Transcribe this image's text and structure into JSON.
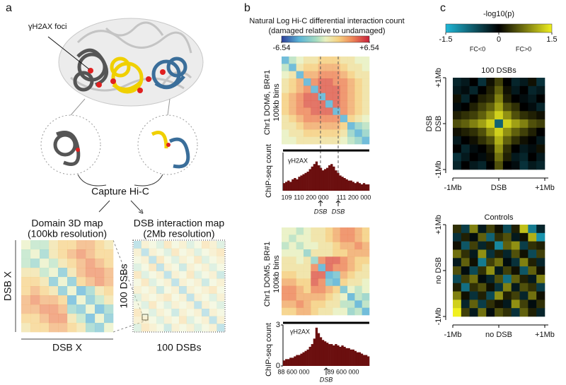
{
  "panel_a": {
    "label": "a",
    "foci_label": "γH2AX foci",
    "capture": "Capture Hi-C",
    "domain_map": {
      "title": "Domain 3D map",
      "subtitle": "(100kb resolution)",
      "x_label": "DSB X",
      "y_label": "DSB X",
      "matrix": [
        [
          0,
          -1,
          -1,
          1,
          2,
          2,
          3,
          3,
          2,
          1
        ],
        [
          -1,
          0,
          -2,
          1,
          2,
          3,
          4,
          3,
          2,
          2
        ],
        [
          -1,
          -2,
          0,
          -1,
          1,
          2,
          3,
          4,
          3,
          2
        ],
        [
          1,
          1,
          -1,
          0,
          -3,
          1,
          3,
          4,
          4,
          3
        ],
        [
          2,
          2,
          1,
          -3,
          0,
          -3,
          2,
          3,
          4,
          3
        ],
        [
          2,
          3,
          2,
          1,
          -3,
          0,
          -4,
          -2,
          1,
          2
        ],
        [
          3,
          4,
          3,
          3,
          2,
          -4,
          0,
          -3,
          -1,
          1
        ],
        [
          3,
          3,
          4,
          4,
          3,
          -2,
          -3,
          0,
          -4,
          -2
        ],
        [
          2,
          2,
          3,
          4,
          4,
          1,
          -1,
          -4,
          0,
          -3
        ],
        [
          1,
          2,
          2,
          3,
          3,
          2,
          1,
          -2,
          -3,
          0
        ]
      ]
    },
    "dsb_map": {
      "title": "DSB interaction map",
      "subtitle": "(2Mb resolution)",
      "x_label": "100 DSBs",
      "y_label": "100 DSBs",
      "matrix": [
        [
          -3,
          1,
          0,
          -1,
          2,
          0,
          1,
          -1,
          0,
          2,
          1,
          -1
        ],
        [
          1,
          -3,
          1,
          0,
          -1,
          2,
          0,
          1,
          -1,
          0,
          1,
          2
        ],
        [
          0,
          1,
          -3,
          2,
          0,
          -1,
          1,
          0,
          2,
          -1,
          0,
          1
        ],
        [
          -1,
          0,
          2,
          -3,
          1,
          0,
          -2,
          1,
          0,
          1,
          -1,
          0
        ],
        [
          2,
          -1,
          0,
          1,
          -3,
          1,
          0,
          2,
          -1,
          0,
          1,
          -2
        ],
        [
          0,
          2,
          -1,
          0,
          1,
          -3,
          1,
          0,
          1,
          -2,
          0,
          1
        ],
        [
          1,
          0,
          1,
          -2,
          0,
          1,
          -3,
          1,
          0,
          1,
          2,
          0
        ],
        [
          -1,
          1,
          0,
          1,
          2,
          0,
          1,
          -3,
          1,
          0,
          -1,
          1
        ],
        [
          0,
          -1,
          2,
          0,
          -1,
          1,
          0,
          1,
          -3,
          1,
          0,
          -1
        ],
        [
          2,
          0,
          -1,
          1,
          0,
          -2,
          1,
          0,
          1,
          -3,
          1,
          0
        ],
        [
          1,
          1,
          0,
          -1,
          1,
          0,
          2,
          -1,
          0,
          1,
          -3,
          1
        ],
        [
          -1,
          2,
          1,
          0,
          -2,
          1,
          0,
          1,
          -1,
          0,
          1,
          -3
        ]
      ]
    }
  },
  "panel_b": {
    "label": "b",
    "colorbar": {
      "title": "Natural Log Hi-C differential interaction count",
      "subtitle": "(damaged relative to undamaged)",
      "lim": [
        -6.54,
        6.54
      ],
      "ticks": [
        -6.54,
        {
          "value": 6.54,
          "label": "+6.54"
        }
      ]
    },
    "maps": [
      {
        "y_label": "Chr1 DOM6, BR#1",
        "y_sublabel": "100kb bins",
        "matrix": [
          [
            -4,
            -1,
            0,
            1,
            1,
            2,
            2,
            2,
            1,
            1,
            0,
            0
          ],
          [
            -1,
            -4,
            1,
            2,
            2,
            3,
            3,
            3,
            2,
            1,
            1,
            0
          ],
          [
            0,
            1,
            -4,
            3,
            3,
            4,
            4,
            4,
            3,
            2,
            1,
            1
          ],
          [
            1,
            2,
            3,
            -4,
            4,
            5,
            5,
            4,
            4,
            3,
            2,
            1
          ],
          [
            1,
            2,
            3,
            4,
            -4,
            5,
            5,
            5,
            4,
            3,
            2,
            1
          ],
          [
            2,
            3,
            4,
            5,
            5,
            -4,
            5,
            5,
            4,
            3,
            2,
            1
          ],
          [
            2,
            3,
            4,
            5,
            5,
            5,
            -4,
            5,
            4,
            3,
            2,
            1
          ],
          [
            2,
            3,
            4,
            4,
            5,
            5,
            5,
            -4,
            4,
            3,
            2,
            1
          ],
          [
            1,
            2,
            3,
            4,
            4,
            4,
            4,
            4,
            -4,
            2,
            1,
            0
          ],
          [
            1,
            1,
            2,
            3,
            3,
            3,
            3,
            3,
            2,
            -4,
            -2,
            -1
          ],
          [
            0,
            1,
            1,
            2,
            2,
            2,
            2,
            2,
            1,
            -2,
            -4,
            -2
          ],
          [
            0,
            0,
            1,
            1,
            1,
            1,
            1,
            1,
            0,
            -1,
            -2,
            -4
          ]
        ],
        "track": {
          "y_label": "ChIP-seq count",
          "name": "γH2AX",
          "ylim": [
            0,
            3
          ],
          "xticks": [
            "109",
            "110 200 000",
            "111 200 000"
          ],
          "annotations": [
            "DSB",
            "DSB"
          ],
          "values": [
            0.6,
            0.7,
            0.8,
            0.7,
            0.9,
            1.0,
            0.9,
            1.1,
            1.2,
            1.3,
            1.4,
            1.5,
            1.7,
            1.9,
            2.1,
            2.3,
            2.0,
            1.8,
            1.6,
            1.7,
            1.8,
            2.0,
            2.1,
            1.9,
            1.6,
            1.4,
            1.2,
            1.1,
            1.0,
            0.9,
            0.8,
            0.8,
            0.7,
            0.6,
            0.7,
            0.6,
            0.5,
            0.6,
            0.5,
            0.5
          ]
        }
      },
      {
        "y_label": "Chr1 DOM5, BR#1",
        "y_sublabel": "100kb bins",
        "matrix": [
          [
            0,
            0,
            -1,
            0,
            1,
            1,
            2,
            3,
            4,
            4,
            3,
            2
          ],
          [
            0,
            -1,
            0,
            0,
            1,
            1,
            2,
            3,
            4,
            4,
            3,
            2
          ],
          [
            -1,
            0,
            -1,
            0,
            0,
            1,
            1,
            2,
            3,
            3,
            4,
            3
          ],
          [
            0,
            0,
            0,
            -2,
            1,
            1,
            1,
            2,
            2,
            3,
            3,
            3
          ],
          [
            1,
            1,
            0,
            1,
            -2,
            4,
            5,
            5,
            4,
            3,
            2,
            2
          ],
          [
            1,
            1,
            1,
            1,
            4,
            -4,
            5,
            4,
            4,
            3,
            2,
            1
          ],
          [
            2,
            2,
            1,
            1,
            5,
            5,
            -4,
            -3,
            3,
            2,
            1,
            1
          ],
          [
            3,
            3,
            2,
            2,
            5,
            4,
            -3,
            -4,
            2,
            1,
            1,
            0
          ],
          [
            4,
            4,
            3,
            2,
            4,
            4,
            3,
            2,
            -3,
            0,
            -1,
            0
          ],
          [
            4,
            4,
            3,
            3,
            3,
            3,
            2,
            1,
            0,
            -4,
            -1,
            -2
          ],
          [
            3,
            3,
            4,
            3,
            2,
            2,
            1,
            1,
            -1,
            -1,
            -4,
            -1
          ],
          [
            2,
            2,
            3,
            3,
            2,
            1,
            1,
            0,
            0,
            -2,
            -1,
            -4
          ]
        ],
        "track": {
          "y_label": "ChIP-seq count",
          "name": "γH2AX",
          "ylim": [
            0,
            3
          ],
          "yticks": [
            0,
            3
          ],
          "xticks": [
            "88 600 000",
            "89 600 000"
          ],
          "annotations": [
            "DSB"
          ],
          "values": [
            0.4,
            0.5,
            0.5,
            0.6,
            0.6,
            0.7,
            0.8,
            0.8,
            0.9,
            1.0,
            1.1,
            1.2,
            1.4,
            1.6,
            2.0,
            2.8,
            2.4,
            2.1,
            1.9,
            1.8,
            1.7,
            1.6,
            1.6,
            1.5,
            1.6,
            1.5,
            1.4,
            1.5,
            1.4,
            1.3,
            1.3,
            1.2,
            1.2,
            1.1,
            1.0,
            1.0,
            0.9,
            0.8,
            0.8,
            0.7
          ]
        }
      }
    ]
  },
  "panel_c": {
    "label": "c",
    "colorbar": {
      "title": "-log10(p)",
      "lim": [
        -1.5,
        1.5
      ],
      "ticks": [
        -1.5,
        0,
        1.5
      ],
      "neg_label": "FC<0",
      "pos_label": "FC>0"
    },
    "maps": [
      {
        "title": "100 DSBs",
        "y_ticks": [
          "+1Mb",
          "DSB",
          "-1Mb"
        ],
        "y_label": "DSB",
        "x_ticks": [
          "-1Mb",
          "DSB",
          "+1Mb"
        ],
        "matrix": [
          [
            -0.3,
            -0.2,
            0,
            -0.4,
            0.1,
            0.4,
            0,
            -0.3,
            -0.2,
            0.1,
            -0.4
          ],
          [
            -0.2,
            -0.1,
            -0.3,
            0,
            0.2,
            0.6,
            0.1,
            -0.2,
            0,
            -0.3,
            -0.2
          ],
          [
            0.1,
            -0.3,
            0,
            0.2,
            0.3,
            0.8,
            0.2,
            0,
            -0.1,
            -0.2,
            0
          ],
          [
            -0.1,
            0,
            0.2,
            0.4,
            0.6,
            1.0,
            0.5,
            0.3,
            0,
            -0.1,
            -0.3
          ],
          [
            0.2,
            0.3,
            0.4,
            0.6,
            0.9,
            1.3,
            0.9,
            0.5,
            0.3,
            0.2,
            0.1
          ],
          [
            0.5,
            0.6,
            0.8,
            1.0,
            1.3,
            -0.8,
            1.3,
            1.0,
            0.8,
            0.5,
            0.4
          ],
          [
            0.1,
            0.2,
            0.3,
            0.5,
            0.9,
            1.3,
            0.9,
            0.6,
            0.4,
            0.2,
            0
          ],
          [
            -0.2,
            0,
            0.1,
            0.3,
            0.5,
            1.1,
            0.6,
            0.3,
            0.1,
            0,
            -0.2
          ],
          [
            0,
            -0.3,
            -0.1,
            0,
            0.2,
            0.9,
            0.3,
            0,
            -0.2,
            -0.1,
            0.1
          ],
          [
            -0.4,
            -0.2,
            0,
            -0.1,
            0.1,
            0.7,
            0.2,
            -0.2,
            -0.3,
            0,
            -0.2
          ],
          [
            -0.3,
            0,
            -0.2,
            -0.3,
            0,
            0.5,
            0,
            -0.1,
            -0.4,
            -0.2,
            -0.3
          ]
        ]
      },
      {
        "title": "Controls",
        "y_ticks": [
          "+1Mb",
          "no DSB",
          "-1Mb"
        ],
        "x_ticks": [
          "-1Mb",
          "no DSB",
          "+1Mb"
        ],
        "matrix": [
          [
            0.3,
            -0.5,
            0.8,
            -0.2,
            0.4,
            0.1,
            -0.6,
            0.2,
            1.2,
            -1.0,
            -0.3
          ],
          [
            -0.4,
            0.2,
            -0.1,
            0.6,
            -0.8,
            0.3,
            0.5,
            -0.2,
            0.1,
            1.1,
            -1.2
          ],
          [
            0.1,
            -0.7,
            0.4,
            -0.3,
            0.2,
            -1.1,
            0.6,
            0.9,
            -0.5,
            0.3,
            0.2
          ],
          [
            0.7,
            0.3,
            -0.2,
            0.9,
            -0.4,
            0.2,
            -0.3,
            0.5,
            0.1,
            -0.6,
            0.4
          ],
          [
            -0.2,
            0.6,
            0.1,
            -1.0,
            0.4,
            0.7,
            -0.1,
            -0.4,
            0.8,
            0.2,
            -0.3
          ],
          [
            0.5,
            -0.1,
            -0.6,
            0.3,
            0.9,
            -0.2,
            0.4,
            0.1,
            -0.7,
            0.6,
            0.1
          ],
          [
            -0.6,
            0.4,
            0.7,
            -0.1,
            -0.3,
            0.5,
            -0.9,
            0.6,
            0.2,
            -0.2,
            0.8
          ],
          [
            0.2,
            -0.9,
            0.3,
            0.5,
            0.1,
            -0.4,
            0.8,
            -0.2,
            0.5,
            0.3,
            -0.5
          ],
          [
            0.8,
            0.1,
            -0.4,
            0.2,
            -0.6,
            0.9,
            0.2,
            0.4,
            -0.3,
            0.7,
            0.1
          ],
          [
            1.3,
            -0.3,
            0.6,
            -0.5,
            0.3,
            0.1,
            -0.2,
            0.9,
            0.4,
            -0.1,
            0.3
          ],
          [
            1.5,
            0.4,
            -0.2,
            0.7,
            -0.1,
            0.5,
            0.3,
            -0.4,
            0.6,
            0.2,
            -0.3
          ]
        ]
      }
    ]
  }
}
